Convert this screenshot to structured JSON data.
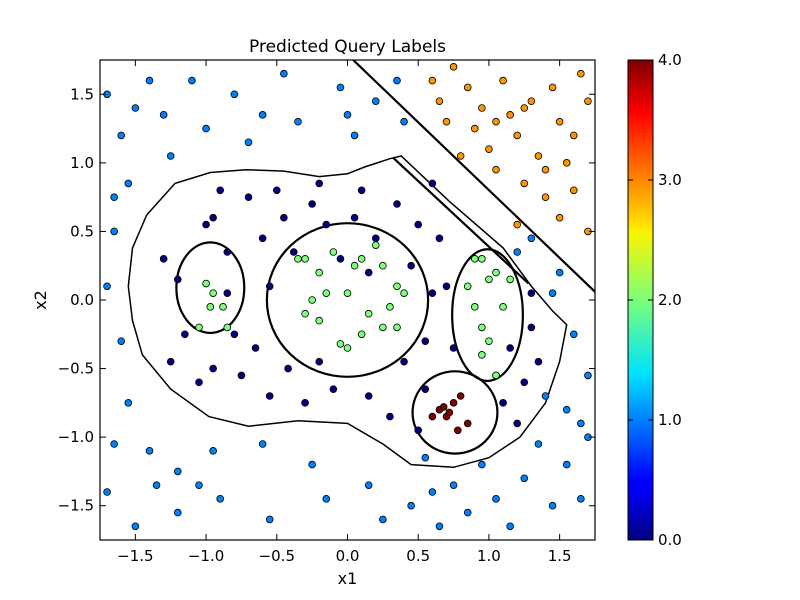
{
  "chart_data": {
    "type": "scatter",
    "title": "Predicted Query Labels",
    "xlabel": "x1",
    "ylabel": "x2",
    "xlim": [
      -1.75,
      1.75
    ],
    "ylim": [
      -1.75,
      1.75
    ],
    "xticks": [
      -1.5,
      -1.0,
      -0.5,
      0.0,
      0.5,
      1.0,
      1.5
    ],
    "yticks": [
      -1.5,
      -1.0,
      -0.5,
      0.0,
      0.5,
      1.0,
      1.5
    ],
    "xtick_labels": [
      "−1.5",
      "−1.0",
      "−0.5",
      "0.0",
      "0.5",
      "1.0",
      "1.5"
    ],
    "ytick_labels": [
      "−1.5",
      "−1.0",
      "−0.5",
      "0.0",
      "0.5",
      "1.0",
      "1.5"
    ],
    "grid": false,
    "colorbar": {
      "colormap": "jet",
      "range": [
        0.0,
        4.0
      ],
      "ticks": [
        0.0,
        1.0,
        2.0,
        3.0,
        4.0
      ],
      "tick_labels": [
        "0.0",
        "1.0",
        "2.0",
        "3.0",
        "4.0"
      ]
    },
    "marker_edge_color": "#000000",
    "class_colors": {
      "0": "#00007f",
      "1": "#0080ff",
      "2": "#7dff7a",
      "3": "#ff9400",
      "4": "#7f0000"
    },
    "decision_boundaries": [
      {
        "label": "diagonal-line-upper",
        "points": [
          [
            0.04,
            1.75
          ],
          [
            1.75,
            0.06
          ]
        ]
      },
      {
        "label": "diagonal-line-lower",
        "points": [
          [
            0.32,
            1.04
          ],
          [
            1.28,
            0.12
          ]
        ]
      },
      {
        "label": "small-circle-left",
        "shape": "ellipse",
        "center": [
          -0.97,
          0.09
        ],
        "radii": [
          0.24,
          0.33
        ]
      },
      {
        "label": "central-circle",
        "shape": "ellipse",
        "center": [
          0.0,
          0.0
        ],
        "radii": [
          0.57,
          0.56
        ]
      },
      {
        "label": "ellipse-right",
        "shape": "ellipse",
        "center": [
          0.99,
          -0.11
        ],
        "radii": [
          0.25,
          0.48
        ]
      },
      {
        "label": "circle-bottom-right",
        "shape": "ellipse",
        "center": [
          0.76,
          -0.82
        ],
        "radii": [
          0.3,
          0.3
        ]
      },
      {
        "label": "outer-region",
        "points": [
          [
            -1.42,
            0.62
          ],
          [
            -1.22,
            0.85
          ],
          [
            -0.97,
            0.93
          ],
          [
            -0.72,
            0.95
          ],
          [
            -0.45,
            0.94
          ],
          [
            -0.2,
            0.9
          ],
          [
            0.0,
            0.92
          ],
          [
            0.12,
            0.97
          ],
          [
            0.3,
            1.03
          ],
          [
            0.38,
            1.05
          ],
          [
            0.72,
            0.72
          ],
          [
            1.1,
            0.38
          ],
          [
            1.3,
            0.1
          ],
          [
            1.45,
            -0.08
          ],
          [
            1.55,
            -0.18
          ],
          [
            1.5,
            -0.45
          ],
          [
            1.4,
            -0.75
          ],
          [
            1.22,
            -1.0
          ],
          [
            1.0,
            -1.15
          ],
          [
            0.75,
            -1.22
          ],
          [
            0.45,
            -1.2
          ],
          [
            0.25,
            -1.05
          ],
          [
            0.0,
            -0.9
          ],
          [
            -0.35,
            -0.88
          ],
          [
            -0.7,
            -0.92
          ],
          [
            -0.98,
            -0.85
          ],
          [
            -1.25,
            -0.65
          ],
          [
            -1.45,
            -0.4
          ],
          [
            -1.52,
            -0.15
          ],
          [
            -1.55,
            0.1
          ],
          [
            -1.52,
            0.38
          ],
          [
            -1.42,
            0.62
          ]
        ]
      }
    ],
    "series": [
      {
        "class": 0,
        "points": [
          [
            -1.3,
            0.3
          ],
          [
            -1.2,
            0.15
          ],
          [
            -1.15,
            -0.25
          ],
          [
            -1.0,
            0.55
          ],
          [
            -0.95,
            0.6
          ],
          [
            -0.9,
            0.8
          ],
          [
            -0.85,
            0.35
          ],
          [
            -0.8,
            -0.25
          ],
          [
            -0.75,
            -0.55
          ],
          [
            -0.7,
            0.75
          ],
          [
            -0.65,
            -0.35
          ],
          [
            -0.6,
            0.45
          ],
          [
            -0.55,
            -0.7
          ],
          [
            -0.5,
            0.8
          ],
          [
            -0.45,
            0.6
          ],
          [
            -0.42,
            -0.5
          ],
          [
            -0.38,
            0.35
          ],
          [
            -0.3,
            -0.75
          ],
          [
            -0.25,
            0.7
          ],
          [
            -0.2,
            0.85
          ],
          [
            -0.15,
            0.55
          ],
          [
            -0.1,
            -0.65
          ],
          [
            -0.05,
            0.3
          ],
          [
            0.05,
            0.6
          ],
          [
            0.1,
            0.8
          ],
          [
            0.15,
            -0.7
          ],
          [
            0.2,
            0.45
          ],
          [
            0.3,
            -0.85
          ],
          [
            0.35,
            0.7
          ],
          [
            0.4,
            -0.45
          ],
          [
            0.45,
            0.25
          ],
          [
            0.5,
            0.55
          ],
          [
            0.55,
            -0.3
          ],
          [
            0.6,
            0.85
          ],
          [
            0.65,
            0.45
          ],
          [
            0.7,
            0.1
          ],
          [
            0.75,
            -0.35
          ],
          [
            1.05,
            -0.55
          ],
          [
            1.1,
            -0.75
          ],
          [
            1.15,
            -0.35
          ],
          [
            1.2,
            -0.9
          ],
          [
            1.25,
            -0.6
          ],
          [
            1.3,
            -0.2
          ],
          [
            1.35,
            -0.45
          ],
          [
            1.3,
            0.05
          ],
          [
            -0.95,
            -0.5
          ],
          [
            -1.05,
            -0.6
          ],
          [
            -0.55,
            0.1
          ],
          [
            0.55,
            -0.65
          ],
          [
            0.6,
            0.05
          ],
          [
            -1.25,
            -0.45
          ],
          [
            -0.85,
            0.05
          ],
          [
            0.5,
            -0.95
          ],
          [
            0.15,
            0.2
          ],
          [
            -0.2,
            -0.45
          ]
        ]
      },
      {
        "class": 1,
        "points": [
          [
            -1.7,
            1.5
          ],
          [
            -1.6,
            1.2
          ],
          [
            -1.55,
            0.85
          ],
          [
            -1.65,
            0.5
          ],
          [
            -1.7,
            0.1
          ],
          [
            -1.6,
            -0.3
          ],
          [
            -1.55,
            -0.75
          ],
          [
            -1.65,
            -1.05
          ],
          [
            -1.7,
            -1.4
          ],
          [
            -1.5,
            -1.65
          ],
          [
            -1.4,
            1.6
          ],
          [
            -1.3,
            1.35
          ],
          [
            -1.25,
            1.05
          ],
          [
            -1.4,
            -1.1
          ],
          [
            -1.35,
            -1.35
          ],
          [
            -1.2,
            -1.55
          ],
          [
            -1.1,
            1.6
          ],
          [
            -1.0,
            1.25
          ],
          [
            -0.95,
            -1.1
          ],
          [
            -0.9,
            -1.45
          ],
          [
            -0.8,
            1.5
          ],
          [
            -0.7,
            1.15
          ],
          [
            -0.6,
            -1.05
          ],
          [
            -0.55,
            -1.6
          ],
          [
            -0.45,
            1.65
          ],
          [
            -0.35,
            1.3
          ],
          [
            -0.25,
            -1.2
          ],
          [
            -0.15,
            -1.45
          ],
          [
            -0.05,
            1.55
          ],
          [
            0.05,
            1.2
          ],
          [
            0.15,
            -1.35
          ],
          [
            0.25,
            -1.6
          ],
          [
            0.35,
            1.6
          ],
          [
            0.4,
            1.3
          ],
          [
            0.45,
            -1.5
          ],
          [
            0.55,
            -1.15
          ],
          [
            0.65,
            -1.65
          ],
          [
            0.75,
            -1.35
          ],
          [
            0.85,
            -1.55
          ],
          [
            0.95,
            -1.2
          ],
          [
            1.05,
            -1.45
          ],
          [
            1.15,
            -1.65
          ],
          [
            1.25,
            -1.3
          ],
          [
            1.35,
            -1.05
          ],
          [
            1.45,
            -1.5
          ],
          [
            1.55,
            -1.2
          ],
          [
            1.65,
            -0.9
          ],
          [
            1.7,
            -0.55
          ],
          [
            1.6,
            -0.25
          ],
          [
            1.5,
            0.2
          ],
          [
            1.4,
            -0.7
          ],
          [
            1.3,
            0.45
          ],
          [
            1.2,
            0.35
          ],
          [
            1.65,
            -1.45
          ],
          [
            1.7,
            -1.0
          ],
          [
            -1.65,
            0.75
          ],
          [
            -1.5,
            1.4
          ],
          [
            -1.2,
            -1.25
          ],
          [
            0.2,
            1.45
          ],
          [
            0.0,
            1.35
          ],
          [
            -0.6,
            1.35
          ],
          [
            -1.05,
            -1.35
          ],
          [
            0.6,
            -1.4
          ],
          [
            1.55,
            -0.8
          ],
          [
            1.45,
            0.05
          ]
        ]
      },
      {
        "class": 2,
        "points": [
          [
            -1.0,
            0.12
          ],
          [
            -0.97,
            -0.05
          ],
          [
            -1.05,
            -0.2
          ],
          [
            -0.88,
            -0.05
          ],
          [
            -0.85,
            -0.2
          ],
          [
            -0.95,
            0.05
          ],
          [
            -0.35,
            0.3
          ],
          [
            -0.3,
            0.3
          ],
          [
            -0.25,
            0.0
          ],
          [
            -0.2,
            -0.15
          ],
          [
            -0.15,
            0.05
          ],
          [
            -0.1,
            0.35
          ],
          [
            -0.05,
            -0.32
          ],
          [
            0.0,
            -0.35
          ],
          [
            0.05,
            0.25
          ],
          [
            0.1,
            0.3
          ],
          [
            0.15,
            -0.1
          ],
          [
            0.2,
            0.4
          ],
          [
            0.25,
            0.25
          ],
          [
            0.3,
            -0.05
          ],
          [
            0.35,
            -0.2
          ],
          [
            -0.3,
            -0.1
          ],
          [
            0.0,
            0.05
          ],
          [
            -0.2,
            0.2
          ],
          [
            0.35,
            0.1
          ],
          [
            0.4,
            0.05
          ],
          [
            0.1,
            -0.25
          ],
          [
            0.25,
            -0.2
          ],
          [
            0.85,
            0.1
          ],
          [
            0.9,
            0.3
          ],
          [
            0.95,
            -0.2
          ],
          [
            1.0,
            -0.3
          ],
          [
            1.05,
            0.2
          ],
          [
            1.1,
            -0.05
          ],
          [
            0.9,
            -0.05
          ],
          [
            1.0,
            0.15
          ],
          [
            1.15,
            0.15
          ],
          [
            0.95,
            -0.4
          ],
          [
            1.05,
            -0.55
          ],
          [
            0.95,
            0.3
          ]
        ]
      },
      {
        "class": 3,
        "points": [
          [
            0.6,
            1.6
          ],
          [
            0.65,
            1.45
          ],
          [
            0.7,
            1.3
          ],
          [
            0.85,
            1.55
          ],
          [
            0.9,
            1.25
          ],
          [
            0.95,
            1.4
          ],
          [
            1.0,
            1.1
          ],
          [
            1.05,
            0.95
          ],
          [
            1.1,
            1.6
          ],
          [
            1.15,
            1.35
          ],
          [
            1.2,
            1.2
          ],
          [
            1.25,
            0.85
          ],
          [
            1.3,
            1.45
          ],
          [
            1.35,
            1.05
          ],
          [
            1.4,
            0.75
          ],
          [
            1.45,
            1.55
          ],
          [
            1.5,
            1.3
          ],
          [
            1.55,
            1.0
          ],
          [
            1.6,
            0.8
          ],
          [
            1.65,
            1.65
          ],
          [
            1.7,
            1.45
          ],
          [
            1.7,
            0.5
          ],
          [
            0.8,
            1.05
          ],
          [
            1.05,
            1.3
          ],
          [
            1.25,
            1.4
          ],
          [
            1.5,
            0.6
          ],
          [
            1.6,
            1.2
          ],
          [
            0.75,
            1.7
          ],
          [
            1.2,
            0.55
          ],
          [
            1.4,
            0.95
          ]
        ]
      },
      {
        "class": 4,
        "points": [
          [
            0.65,
            -0.8
          ],
          [
            0.7,
            -0.85
          ],
          [
            0.75,
            -0.75
          ],
          [
            0.72,
            -0.82
          ],
          [
            0.78,
            -0.95
          ],
          [
            0.8,
            -0.7
          ],
          [
            0.85,
            -0.9
          ],
          [
            0.68,
            -0.78
          ],
          [
            0.6,
            -0.85
          ]
        ]
      }
    ]
  }
}
